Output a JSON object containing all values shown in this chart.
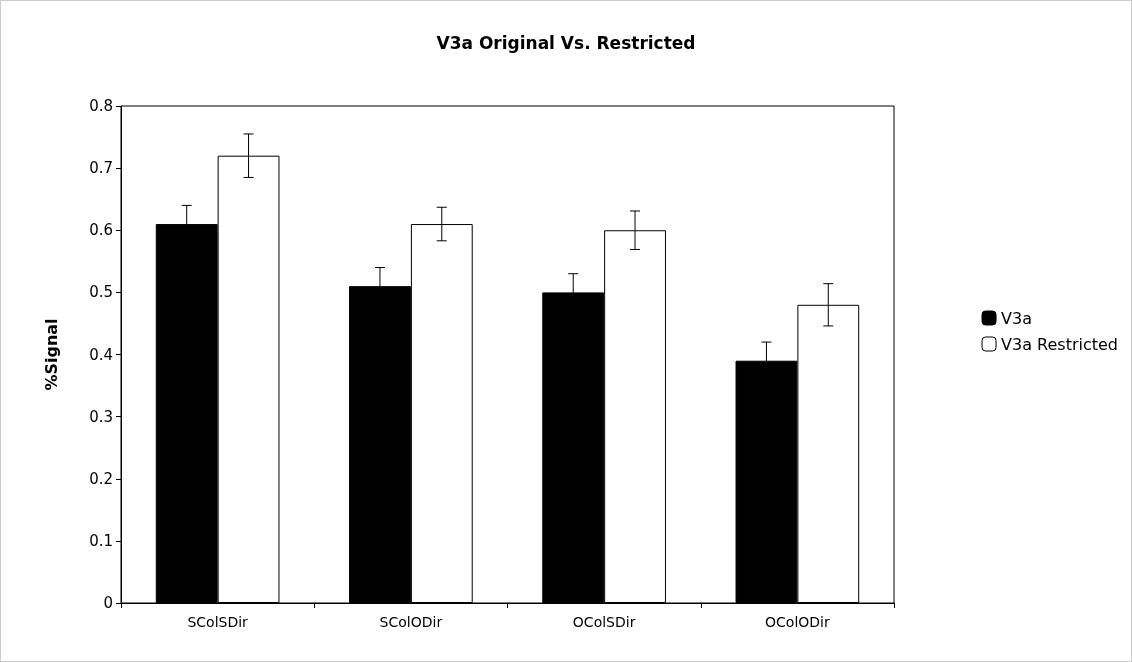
{
  "chart_data": {
    "type": "bar",
    "title": "V3a Original Vs. Restricted",
    "ylabel": "%Signal",
    "categories": [
      "SColSDir",
      "SColODir",
      "OColSDir",
      "OColODir"
    ],
    "series": [
      {
        "name": "V3a",
        "color": "#000000",
        "values": [
          0.61,
          0.51,
          0.5,
          0.39
        ],
        "errors": [
          0.03,
          0.03,
          0.03,
          0.03
        ]
      },
      {
        "name": "V3a Restricted",
        "color": "#ffffff",
        "values": [
          0.72,
          0.61,
          0.6,
          0.48
        ],
        "errors": [
          0.035,
          0.027,
          0.031,
          0.034
        ]
      }
    ],
    "ylim": [
      0,
      0.8
    ],
    "yticks": [
      0,
      0.1,
      0.2,
      0.3,
      0.4,
      0.5,
      0.6,
      0.7,
      0.8
    ],
    "grid": false,
    "legend": "right"
  }
}
